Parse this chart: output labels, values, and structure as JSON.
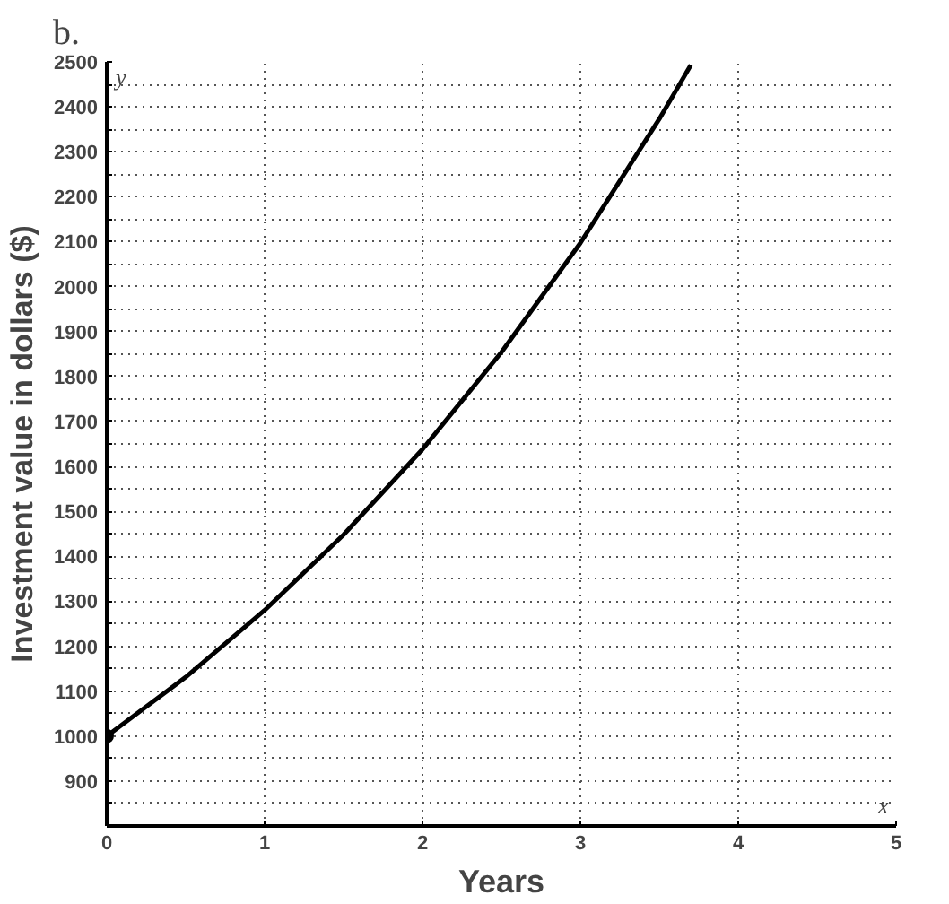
{
  "chart_data": {
    "type": "line",
    "title": "b.",
    "xlabel": "Years",
    "ylabel": "Investment value in dollars ($)",
    "annotations": [
      "y",
      "x"
    ],
    "series": [
      {
        "color": "#000000",
        "x": [
          0,
          0.5,
          1,
          1.5,
          2,
          2.5,
          3,
          3.5,
          3.7
        ],
        "values": [
          1000,
          1131,
          1280,
          1448,
          1638,
          1854,
          2097,
          2373,
          2493
        ]
      },
      {
        "type": "scatter",
        "color": "#000000",
        "x": [
          0
        ],
        "values": [
          1000
        ]
      }
    ],
    "xlim": [
      0,
      5
    ],
    "xticks": [
      0,
      1,
      2,
      3,
      4,
      5
    ],
    "ylim": [
      800,
      2500
    ],
    "yticks": [
      {
        "value": 850,
        "label": null
      },
      900,
      {
        "value": 950,
        "label": null
      },
      1000,
      {
        "value": 1050,
        "label": null
      },
      1100,
      {
        "value": 1150,
        "label": null
      },
      1200,
      {
        "value": 1250,
        "label": null
      },
      1300,
      {
        "value": 1350,
        "label": null
      },
      1400,
      {
        "value": 1450,
        "label": null
      },
      1500,
      {
        "value": 1550,
        "label": null
      },
      1600,
      {
        "value": 1650,
        "label": null
      },
      1700,
      {
        "value": 1750,
        "label": null
      },
      1800,
      {
        "value": 1850,
        "label": null
      },
      1900,
      {
        "value": 1950,
        "label": null
      },
      2000,
      {
        "value": 2050,
        "label": null
      },
      2100,
      {
        "value": 2150,
        "label": null
      },
      2200,
      {
        "value": 2250,
        "label": null
      },
      2300,
      {
        "value": 2350,
        "label": null
      },
      2400,
      {
        "value": 2450,
        "label": null
      },
      2500
    ],
    "grid": true,
    "line_style": "solid"
  }
}
